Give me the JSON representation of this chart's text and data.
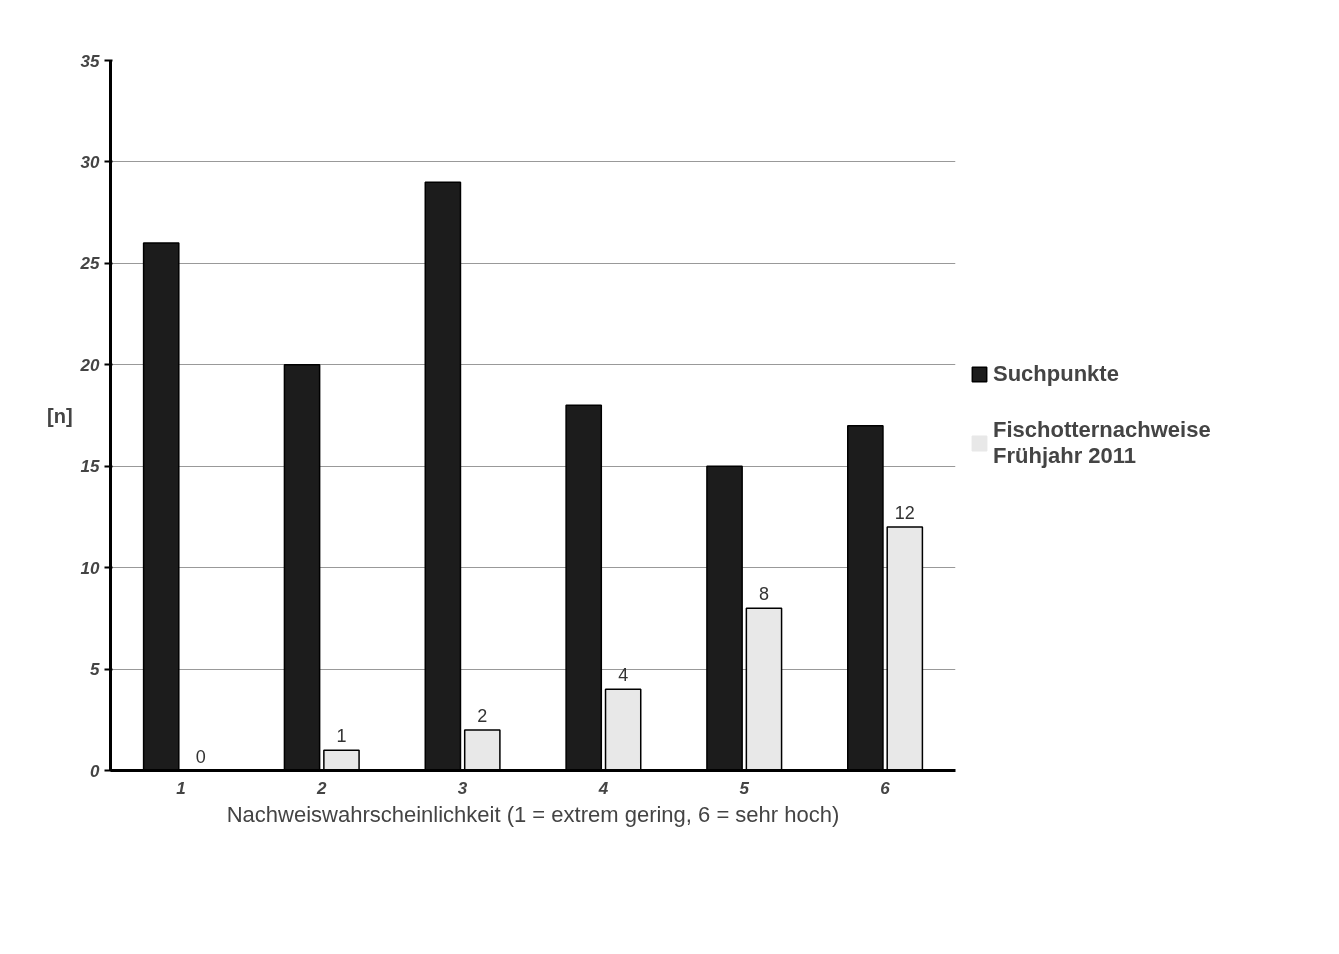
{
  "chart_data": {
    "type": "bar",
    "ylabel": "[n]",
    "xlabel": "Nachweiswahrscheinlichkeit (1 = extrem gering, 6 = sehr hoch)",
    "categories": [
      "1",
      "2",
      "3",
      "4",
      "5",
      "6"
    ],
    "series": [
      {
        "name": "Suchpunkte",
        "color": "#1c1c1c",
        "values": [
          26,
          20,
          29,
          18,
          15,
          17
        ]
      },
      {
        "name": "Fischotternachweise\nFrühjahr 2011",
        "color": "#e8e8e8",
        "values": [
          0,
          1,
          2,
          4,
          8,
          12
        ],
        "value_labels": [
          "0",
          "1",
          "2",
          "4",
          "8",
          "12"
        ]
      }
    ],
    "ylim": [
      0,
      35
    ],
    "yticks": [
      0,
      5,
      10,
      15,
      20,
      25,
      30,
      35
    ],
    "grid": "y",
    "legend": "right"
  }
}
